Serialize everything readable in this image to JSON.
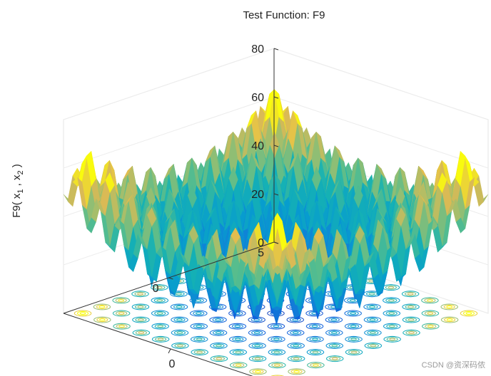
{
  "chart_data": {
    "type": "surface",
    "title": "Test Function: F9",
    "zlabel": {
      "main": "F9( x",
      "sub1": "1",
      "mid": " , x",
      "sub2": "2",
      "end": " )"
    },
    "function": "Rastrigin: sum(x_i^2 - 10*cos(2*pi*x_i) + 10)",
    "x_range": [
      -5.12,
      5.12
    ],
    "y_range": [
      -5.12,
      5.12
    ],
    "zlim": [
      0,
      80
    ],
    "z_ticks": [
      "0",
      "20",
      "40",
      "60",
      "80"
    ],
    "x_ticks": [
      "5",
      "0"
    ],
    "y_ticks": [
      "0"
    ],
    "grid": true,
    "contour_on_floor": true,
    "colormap": "parula"
  },
  "watermark": "CSDN @资深码侬"
}
